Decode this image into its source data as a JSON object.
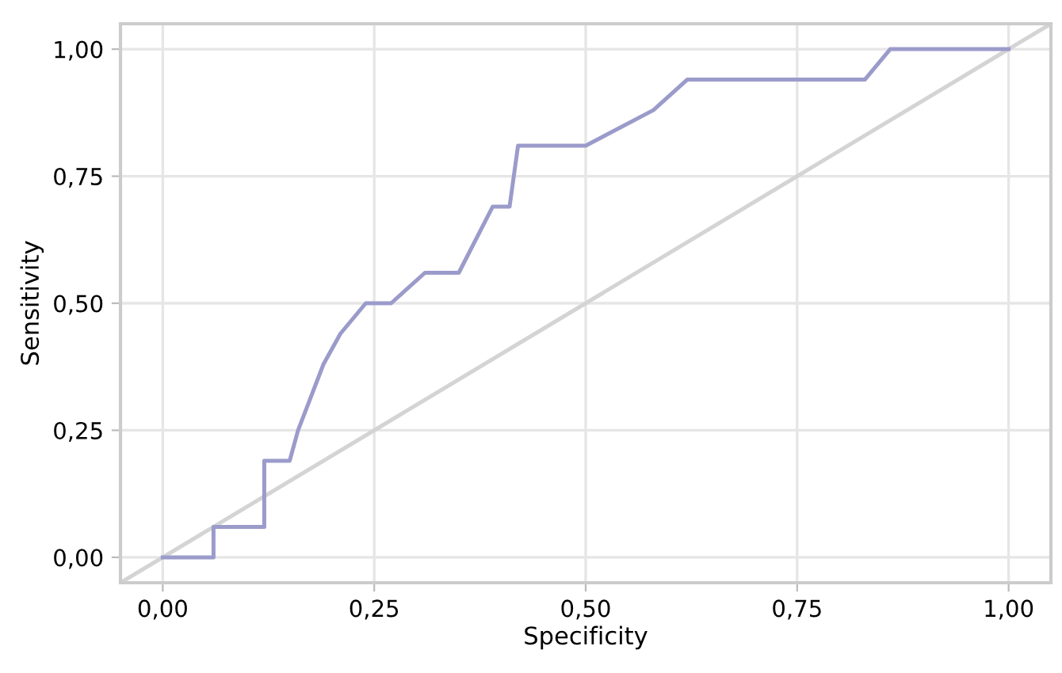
{
  "chart_data": {
    "type": "line",
    "xlabel": "Specificity",
    "ylabel": "Sensitivity",
    "series": [
      {
        "color": "#9b9bcb",
        "x": [
          0,
          0.06,
          0.06,
          0.12,
          0.12,
          0.15,
          0.16,
          0.19,
          0.21,
          0.24,
          0.27,
          0.31,
          0.35,
          0.39,
          0.41,
          0.42,
          0.5,
          0.58,
          0.62,
          0.83,
          0.86,
          1.0
        ],
        "values": [
          0,
          0,
          0.06,
          0.06,
          0.19,
          0.19,
          0.25,
          0.38,
          0.44,
          0.5,
          0.5,
          0.56,
          0.56,
          0.69,
          0.69,
          0.81,
          0.81,
          0.88,
          0.94,
          0.94,
          1.0,
          1.0
        ]
      },
      {
        "color": "#d4d4d4",
        "x": [
          -0.05,
          1.05
        ],
        "values": [
          -0.05,
          1.05
        ]
      }
    ],
    "xlim": [
      -0.05,
      1.05
    ],
    "ylim": [
      -0.05,
      1.05
    ],
    "xticks": [
      {
        "value": 0,
        "label": "0,00"
      },
      {
        "value": 0.25,
        "label": "0,25"
      },
      {
        "value": 0.5,
        "label": "0,50"
      },
      {
        "value": 0.75,
        "label": "0,75"
      },
      {
        "value": 1,
        "label": "1,00"
      }
    ],
    "yticks": [
      {
        "value": 0,
        "label": "0,00"
      },
      {
        "value": 0.25,
        "label": "0,25"
      },
      {
        "value": 0.5,
        "label": "0,50"
      },
      {
        "value": 0.75,
        "label": "0,75"
      },
      {
        "value": 1,
        "label": "1,00"
      }
    ],
    "grid": true
  }
}
